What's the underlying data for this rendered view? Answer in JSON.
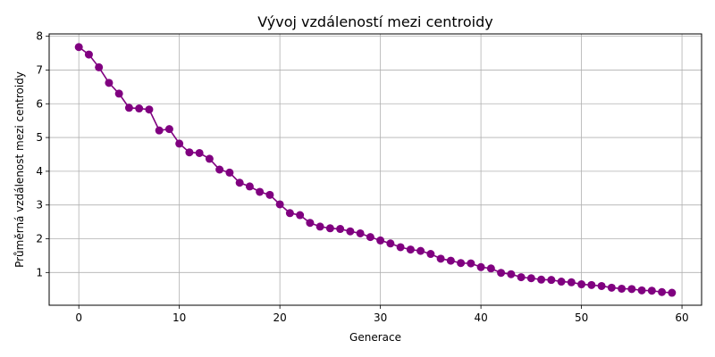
{
  "chart_data": {
    "type": "line",
    "title": "Vývoj vzdáleností mezi centroidy",
    "xlabel": "Generace",
    "ylabel": "Průměrná vzdálenost mezi centroidy",
    "xlim": [
      -2.95,
      61.95
    ],
    "ylim": [
      0.03,
      8.07
    ],
    "xticks": [
      0,
      10,
      20,
      30,
      40,
      50,
      60
    ],
    "yticks": [
      1,
      2,
      3,
      4,
      5,
      6,
      7,
      8
    ],
    "grid": true,
    "color": "#800080",
    "series": [
      {
        "x": [
          0,
          1,
          2,
          3,
          4,
          5,
          6,
          7,
          8,
          9,
          10,
          11,
          12,
          13,
          14,
          15,
          16,
          17,
          18,
          19,
          20,
          21,
          22,
          23,
          24,
          25,
          26,
          27,
          28,
          29,
          30,
          31,
          32,
          33,
          34,
          35,
          36,
          37,
          38,
          39,
          40,
          41,
          42,
          43,
          44,
          45,
          46,
          47,
          48,
          49,
          50,
          51,
          52,
          53,
          54,
          55,
          56,
          57,
          58,
          59
        ],
        "values": [
          7.68,
          7.46,
          7.08,
          6.62,
          6.3,
          5.88,
          5.86,
          5.83,
          5.21,
          5.25,
          4.82,
          4.56,
          4.54,
          4.37,
          4.05,
          3.96,
          3.66,
          3.55,
          3.39,
          3.3,
          3.02,
          2.76,
          2.7,
          2.47,
          2.36,
          2.31,
          2.29,
          2.22,
          2.16,
          2.05,
          1.95,
          1.86,
          1.75,
          1.68,
          1.64,
          1.55,
          1.41,
          1.35,
          1.28,
          1.27,
          1.16,
          1.12,
          0.99,
          0.95,
          0.86,
          0.83,
          0.79,
          0.78,
          0.73,
          0.71,
          0.65,
          0.63,
          0.6,
          0.55,
          0.52,
          0.51,
          0.47,
          0.46,
          0.42,
          0.4
        ]
      }
    ]
  }
}
